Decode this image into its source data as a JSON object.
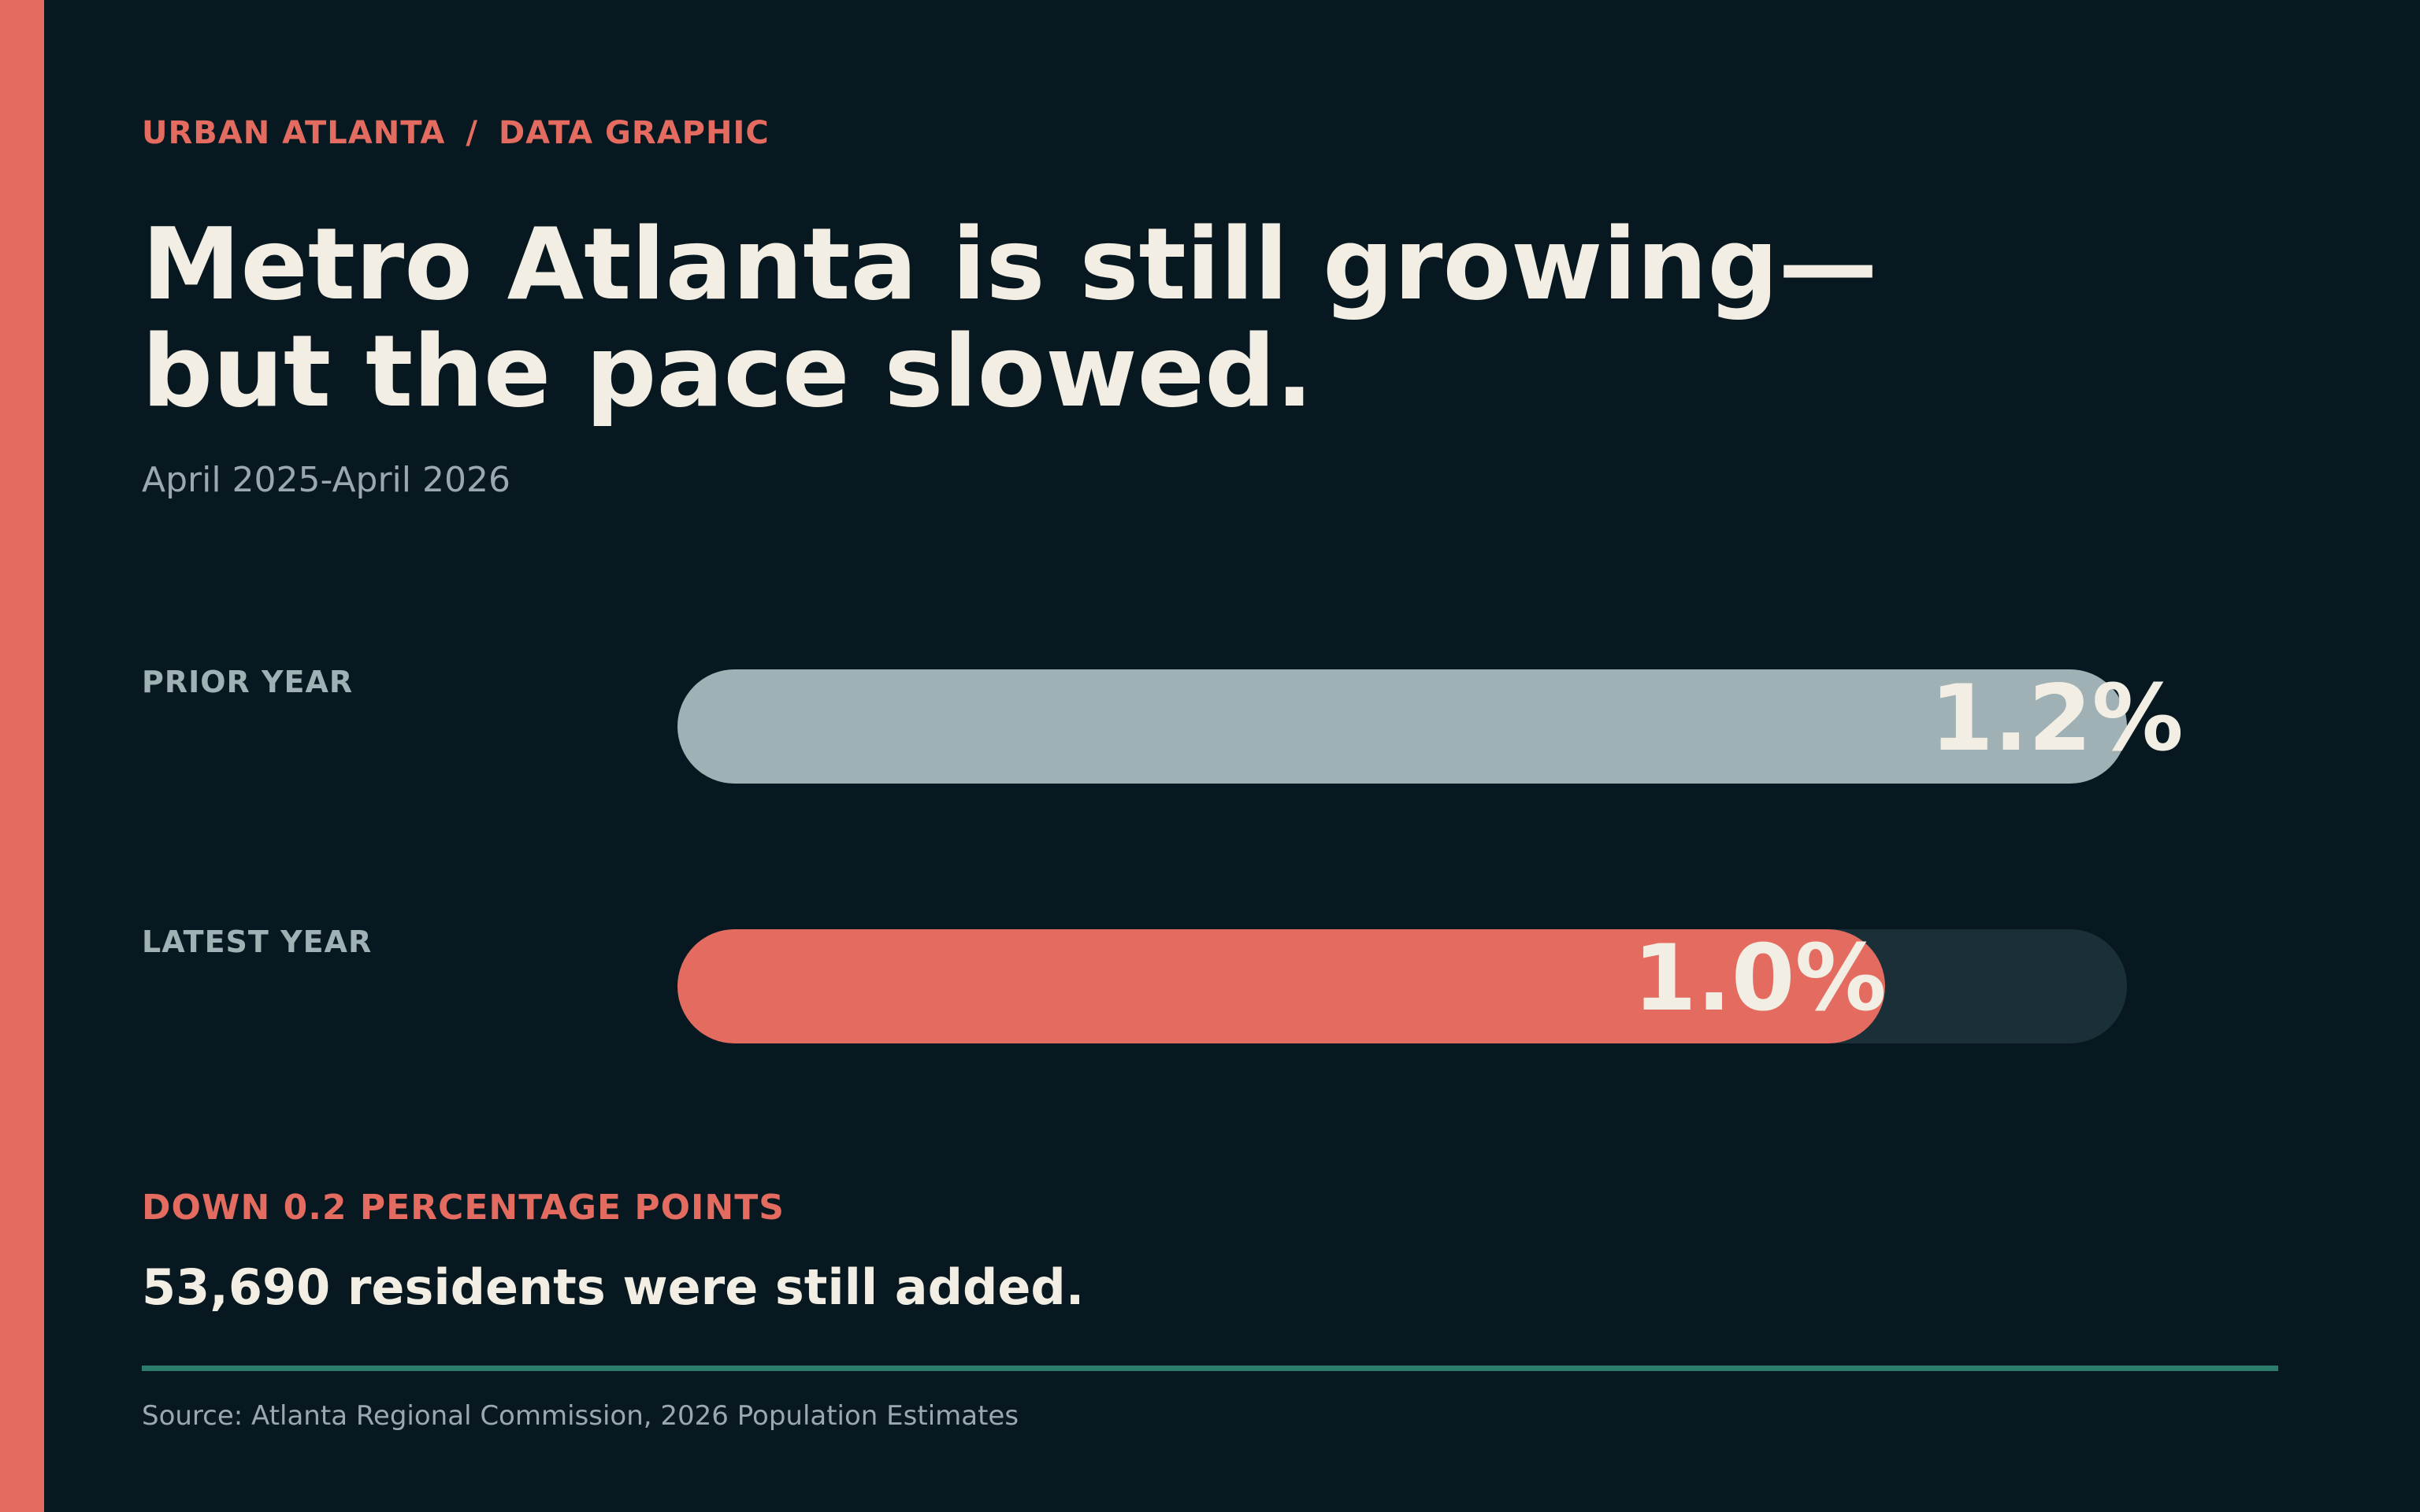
{
  "header": {
    "section": "URBAN ATLANTA",
    "separator": "/",
    "category": "DATA GRAPHIC",
    "headline_line1": "Metro Atlanta is still growing—",
    "headline_line2": "but the pace slowed.",
    "subtitle": "April 2025-April 2026"
  },
  "chart_data": {
    "type": "bar",
    "orientation": "horizontal",
    "title": "",
    "xlabel": "",
    "ylabel": "",
    "categories": [
      "PRIOR YEAR",
      "LATEST YEAR"
    ],
    "values": [
      1.2,
      1.0
    ],
    "value_labels": [
      "1.2%",
      "1.0%"
    ],
    "unit": "%",
    "xlim": [
      0,
      1.2
    ],
    "grid": false,
    "colors": {
      "prior": "#9fb1b5",
      "latest": "#e36b5f",
      "track": "#1a2f38"
    }
  },
  "callout": {
    "label": "DOWN 0.2 PERCENTAGE POINTS",
    "note": "53,690 residents were still added."
  },
  "footer": {
    "source": "Source: Atlanta Regional Commission, 2026 Population Estimates"
  },
  "theme": {
    "background": "#081820",
    "accent": "#e36b5f",
    "text": "#f3eee4",
    "muted": "#9aa9af",
    "rule": "#2c7c6c"
  }
}
